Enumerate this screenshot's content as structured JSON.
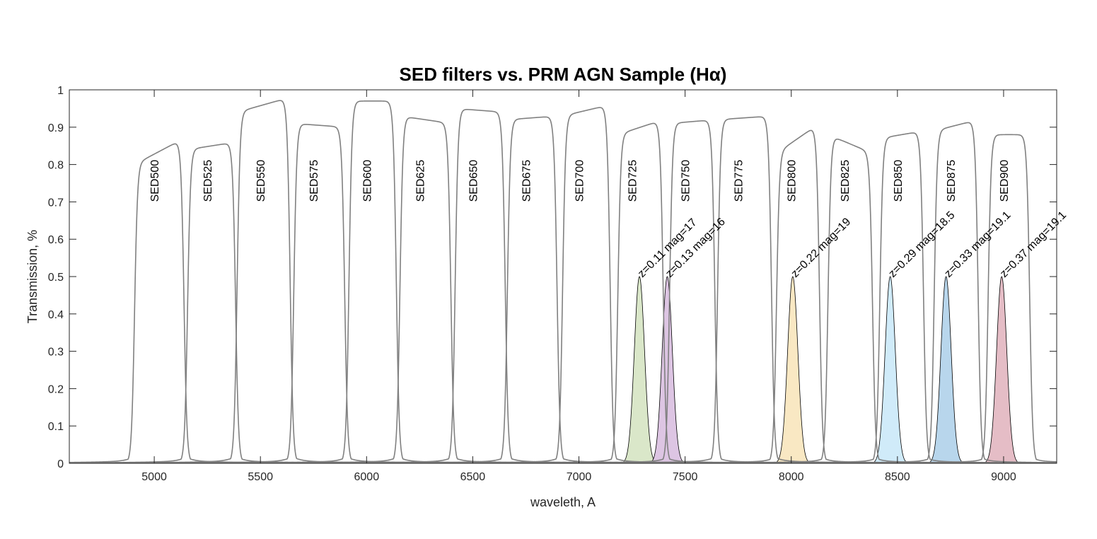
{
  "chart_data": {
    "type": "line",
    "title": "SED filters vs. PRM AGN Sample (Hα)",
    "xlabel": "waveleth, A",
    "ylabel": "Transmission, %",
    "xlim": [
      4600,
      9250
    ],
    "ylim": [
      0,
      1
    ],
    "xticks": [
      5000,
      5500,
      6000,
      6500,
      7000,
      7500,
      8000,
      8500,
      9000
    ],
    "xtick_labels": [
      "5000",
      "5500",
      "6000",
      "6500",
      "7000",
      "7500",
      "8000",
      "8500",
      "9000"
    ],
    "yticks": [
      0,
      0.1,
      0.2,
      0.3,
      0.4,
      0.5,
      0.6,
      0.7,
      0.8,
      0.9,
      1
    ],
    "ytick_labels": [
      "0",
      "0.1",
      "0.2",
      "0.3",
      "0.4",
      "0.5",
      "0.6",
      "0.7",
      "0.8",
      "0.9",
      "1"
    ],
    "grid": false,
    "filter_color": "#808080",
    "filters": [
      {
        "name": "SED500",
        "center": 5000,
        "edges": [
          4907,
          5140
        ],
        "top": [
          0.8,
          0.87
        ]
      },
      {
        "name": "SED525",
        "center": 5250,
        "edges": [
          5157,
          5383
        ],
        "top": [
          0.84,
          0.86
        ]
      },
      {
        "name": "SED550",
        "center": 5500,
        "edges": [
          5390,
          5640
        ],
        "top": [
          0.94,
          0.98
        ]
      },
      {
        "name": "SED575",
        "center": 5750,
        "edges": [
          5657,
          5897
        ],
        "top": [
          0.91,
          0.9
        ]
      },
      {
        "name": "SED600",
        "center": 6000,
        "edges": [
          5917,
          6140
        ],
        "top": [
          0.97,
          0.97
        ]
      },
      {
        "name": "SED625",
        "center": 6250,
        "edges": [
          6157,
          6397
        ],
        "top": [
          0.93,
          0.91
        ]
      },
      {
        "name": "SED650",
        "center": 6500,
        "edges": [
          6417,
          6653
        ],
        "top": [
          0.95,
          0.94
        ]
      },
      {
        "name": "SED675",
        "center": 6750,
        "edges": [
          6663,
          6897
        ],
        "top": [
          0.92,
          0.93
        ]
      },
      {
        "name": "SED700",
        "center": 7000,
        "edges": [
          6923,
          7147
        ],
        "top": [
          0.93,
          0.96
        ]
      },
      {
        "name": "SED725",
        "center": 7250,
        "edges": [
          7183,
          7397
        ],
        "top": [
          0.88,
          0.92
        ]
      },
      {
        "name": "SED750",
        "center": 7500,
        "edges": [
          7427,
          7640
        ],
        "top": [
          0.91,
          0.92
        ]
      },
      {
        "name": "SED775",
        "center": 7750,
        "edges": [
          7653,
          7907
        ],
        "top": [
          0.92,
          0.93
        ]
      },
      {
        "name": "SED800",
        "center": 8000,
        "edges": [
          7930,
          8133
        ],
        "top": [
          0.83,
          0.91
        ]
      },
      {
        "name": "SED825",
        "center": 8250,
        "edges": [
          8173,
          8383
        ],
        "top": [
          0.88,
          0.83
        ]
      },
      {
        "name": "SED850",
        "center": 8500,
        "edges": [
          8417,
          8623
        ],
        "top": [
          0.87,
          0.89
        ]
      },
      {
        "name": "SED875",
        "center": 8750,
        "edges": [
          8673,
          8880
        ],
        "top": [
          0.89,
          0.92
        ]
      },
      {
        "name": "SED900",
        "center": 9000,
        "edges": [
          8927,
          9123
        ],
        "top": [
          0.88,
          0.88
        ]
      }
    ],
    "label_y": 0.7,
    "sources": [
      {
        "label": "z=0.11 mag=17",
        "z": 0.11,
        "mag": 17,
        "peak_wavelength": 7285,
        "peak": 0.5,
        "sigma": 24,
        "color": "#d6e4c3"
      },
      {
        "label": "z=0.13 mag=16",
        "z": 0.13,
        "mag": 16,
        "peak_wavelength": 7416,
        "peak": 0.5,
        "sigma": 24,
        "color": "#d9bfe0"
      },
      {
        "label": "z=0.22 mag=19",
        "z": 0.22,
        "mag": 19,
        "peak_wavelength": 8007,
        "peak": 0.5,
        "sigma": 24,
        "color": "#f8e6bc"
      },
      {
        "label": "z=0.29 mag=18.5",
        "z": 0.29,
        "mag": 18.5,
        "peak_wavelength": 8466,
        "peak": 0.5,
        "sigma": 24,
        "color": "#cbe9f8"
      },
      {
        "label": "z=0.33 mag=19.1",
        "z": 0.33,
        "mag": 19.1,
        "peak_wavelength": 8729,
        "peak": 0.5,
        "sigma": 24,
        "color": "#b0d2ea"
      },
      {
        "label": "z=0.37 mag=19.1",
        "z": 0.37,
        "mag": 19.1,
        "peak_wavelength": 8991,
        "peak": 0.5,
        "sigma": 24,
        "color": "#e2b6c0"
      }
    ]
  }
}
